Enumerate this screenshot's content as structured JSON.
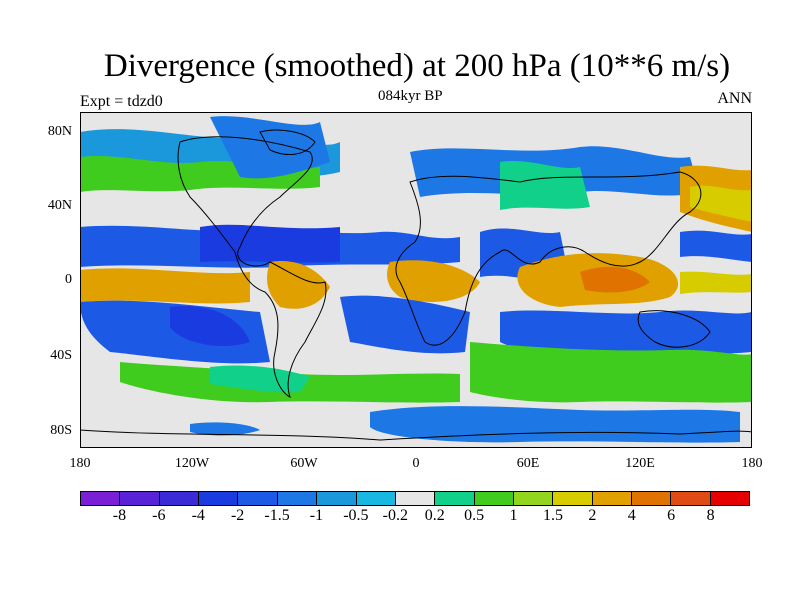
{
  "title": "Divergence (smoothed) at 200 hPa (10**6 m/s)",
  "subtitle": "084kyr BP",
  "experiment": "Expt = tdzd0",
  "season": "ANN",
  "lat_labels": [
    "80N",
    "40N",
    "0",
    "40S",
    "80S"
  ],
  "lon_labels": [
    "180",
    "120W",
    "60W",
    "0",
    "60E",
    "120E",
    "180"
  ],
  "colorbar": {
    "colors": [
      "#7a1fd6",
      "#5a22d6",
      "#3b2bd6",
      "#1a3be0",
      "#1c5ae6",
      "#1d78e6",
      "#1b97dc",
      "#19b8e0",
      "#e6e6e6",
      "#11d18a",
      "#3fcc1e",
      "#93d41e",
      "#d6cc00",
      "#e0a000",
      "#e07200",
      "#e04a14",
      "#e60000"
    ],
    "labels": [
      "-8",
      "-6",
      "-4",
      "-2",
      "-1.5",
      "-1",
      "-0.5",
      "-0.2",
      "0.2",
      "0.5",
      "1",
      "1.5",
      "2",
      "4",
      "6",
      "8"
    ]
  }
}
